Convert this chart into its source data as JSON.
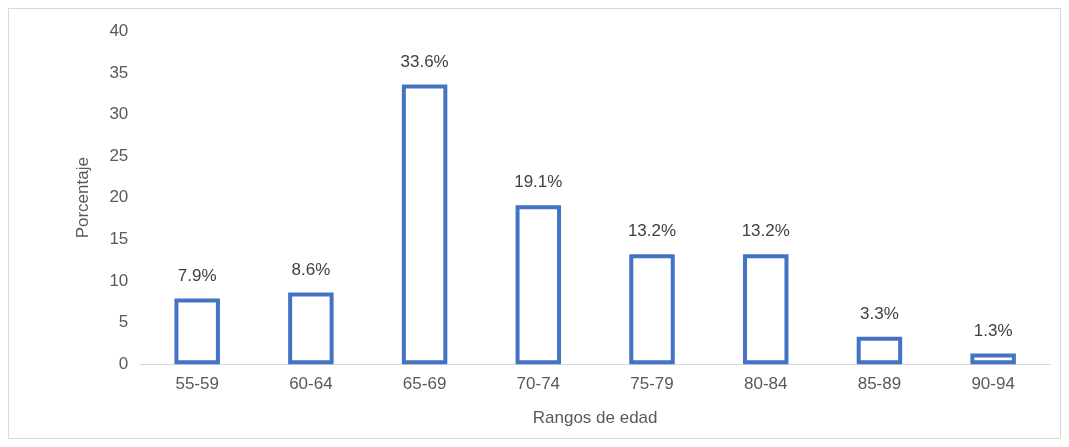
{
  "chart_data": {
    "type": "bar",
    "xlabel": "Rangos de edad",
    "ylabel": "Porcentaje",
    "categories": [
      "55-59",
      "60-64",
      "65-69",
      "70-74",
      "75-79",
      "80-84",
      "85-89",
      "90-94"
    ],
    "values": [
      7.9,
      8.6,
      33.6,
      19.1,
      13.2,
      13.2,
      3.3,
      1.3
    ],
    "value_labels": [
      "7.9%",
      "8.6%",
      "33.6%",
      "19.1%",
      "13.2%",
      "13.2%",
      "3.3%",
      "1.3%"
    ],
    "color": "#4472c4",
    "ylim": [
      0,
      40
    ],
    "yticks": [
      0,
      5,
      10,
      15,
      20,
      25,
      30,
      35,
      40
    ],
    "grid": false,
    "legend": false
  }
}
